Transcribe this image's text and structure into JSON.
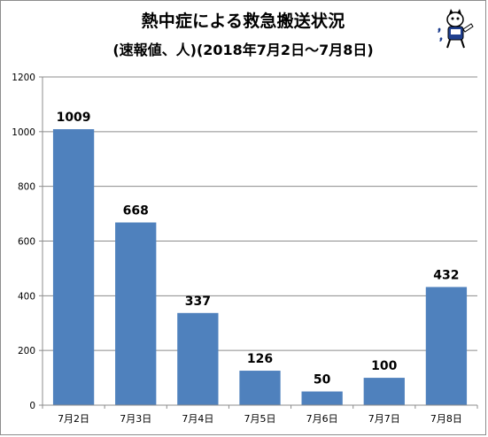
{
  "chart_data": {
    "type": "bar",
    "title": "熱中症による救急搬送状況",
    "subtitle": "(速報値、人)(2018年7月2日〜7月8日)",
    "categories": [
      "7月2日",
      "7月3日",
      "7月4日",
      "7月5日",
      "7月6日",
      "7月7日",
      "7月8日"
    ],
    "values": [
      1009,
      668,
      337,
      126,
      50,
      100,
      432
    ],
    "ylim": [
      0,
      1200
    ],
    "yticks": [
      0,
      200,
      400,
      600,
      800,
      1000,
      1200
    ],
    "ytick_labels": [
      "0",
      "200",
      "400",
      "600",
      "800",
      "1000",
      "1200"
    ],
    "grid": true,
    "legend": "none",
    "colors": {
      "bar": "#4f81bd",
      "grid": "#8c8c8c",
      "axis": "#8c8c8c"
    }
  }
}
